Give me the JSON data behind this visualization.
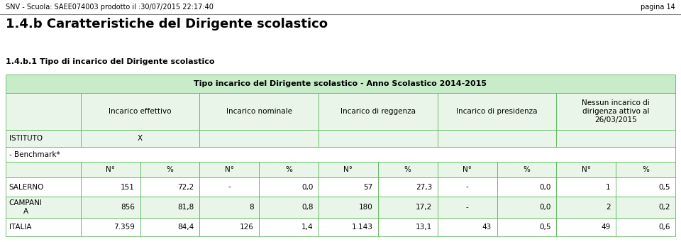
{
  "header_top": "SNV - Scuola: SAEE074003 prodotto il :30/07/2015 22:17:40",
  "header_right": "pagina 14",
  "title_main": "1.4.b Caratteristiche del Dirigente scolastico",
  "title_sub": "1.4.b.1 Tipo di incarico del Dirigente scolastico",
  "table_header": "Tipo incarico del Dirigente scolastico - Anno Scolastico 2014-2015",
  "col_header_labels": [
    "Incarico effettivo",
    "Incarico nominale",
    "Incarico di reggenza",
    "Incarico di presidenza",
    "Nessun incarico di\ndirigenza attivo al\n26/03/2015"
  ],
  "sub_headers": [
    "N°",
    "%",
    "N°",
    "%",
    "N°",
    "%",
    "N°",
    "%",
    "N°",
    "%"
  ],
  "istituto_label": "ISTITUTO",
  "istituto_value": "X",
  "benchmark_label": "- Benchmark*",
  "rows": [
    {
      "label": "SALERNO",
      "values": [
        "151",
        "72,2",
        "-",
        "0,0",
        "57",
        "27,3",
        "-",
        "0,0",
        "1",
        "0,5"
      ]
    },
    {
      "label": "CAMPANI\nA",
      "values": [
        "856",
        "81,8",
        "8",
        "0,8",
        "180",
        "17,2",
        "-",
        "0,0",
        "2",
        "0,2"
      ]
    },
    {
      "label": "ITALIA",
      "values": [
        "7.359",
        "84,4",
        "126",
        "1,4",
        "1.143",
        "13,1",
        "43",
        "0,5",
        "49",
        "0,6"
      ]
    }
  ],
  "bg_color_header": "#c8ecc9",
  "bg_color_light": "#e8f5e8",
  "bg_color_white": "#ffffff",
  "border_color": "#5cb85c",
  "text_color": "#000000",
  "header_line_color": "#888888"
}
